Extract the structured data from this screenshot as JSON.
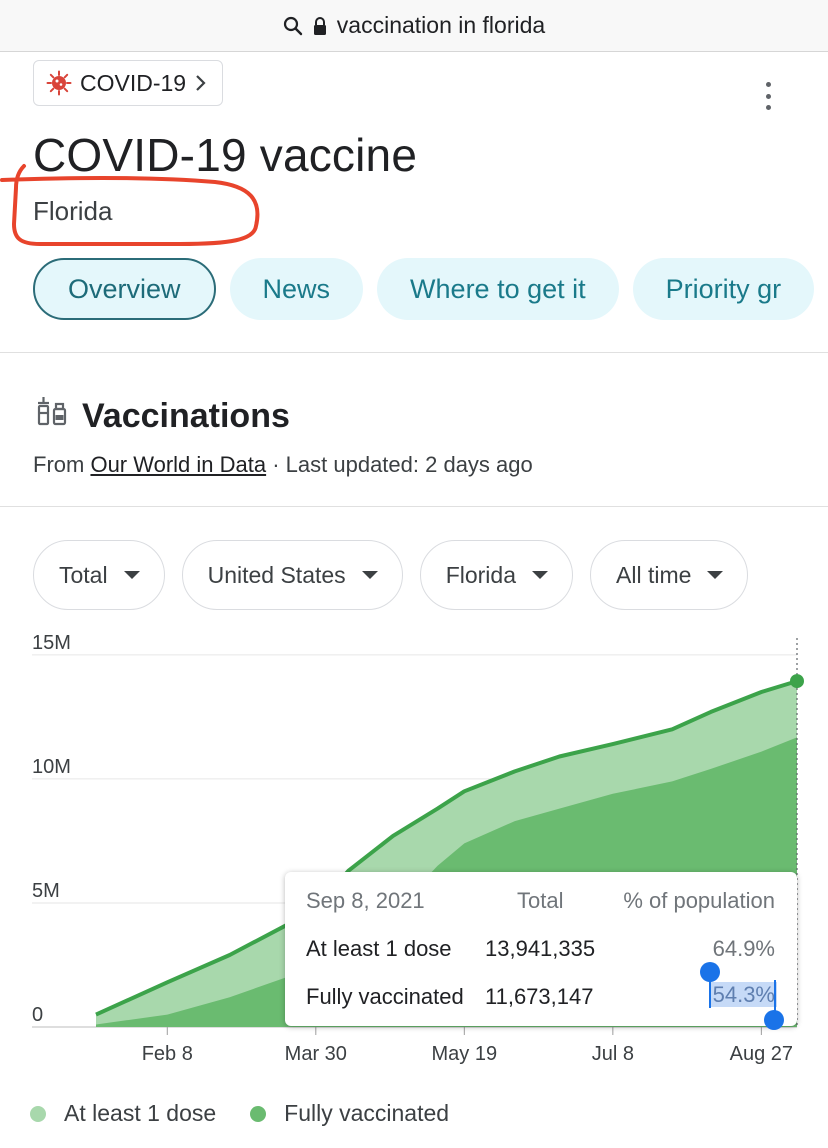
{
  "browser": {
    "address": "vaccination in florida"
  },
  "topic_chip": {
    "label": "COVID-19"
  },
  "header": {
    "title": "COVID-19 vaccine",
    "location": "Florida"
  },
  "tabs": [
    {
      "label": "Overview"
    },
    {
      "label": "News"
    },
    {
      "label": "Where to get it"
    },
    {
      "label": "Priority gr"
    }
  ],
  "section": {
    "title": "Vaccinations",
    "source_prefix": "From",
    "source_link": "Our World in Data",
    "updated": "· Last updated: 2 days ago"
  },
  "filters": [
    {
      "label": "Total"
    },
    {
      "label": "United States"
    },
    {
      "label": "Florida"
    },
    {
      "label": "All time"
    }
  ],
  "colors": {
    "accent_teal": "#1a7a8a",
    "dose1_fill": "#a8d8ac",
    "full_fill": "#6abb70",
    "line": "#3ca34a",
    "annotation": "#e8442c",
    "selection": "#1a73e8"
  },
  "chart_data": {
    "type": "area",
    "title": "",
    "xlabel": "",
    "ylabel": "",
    "ylim": [
      0,
      16000000
    ],
    "y_ticks": [
      0,
      5000000,
      10000000,
      15000000
    ],
    "y_tick_labels": [
      "0",
      "5M",
      "10M",
      "15M"
    ],
    "x_range": [
      "2021-01-15",
      "2021-09-08"
    ],
    "x_ticks": [
      "2021-02-08",
      "2021-03-30",
      "2021-05-19",
      "2021-07-08",
      "2021-08-27"
    ],
    "x_tick_labels": [
      "Feb 8",
      "Mar 30",
      "May 19",
      "Jul 8",
      "Aug 27"
    ],
    "grid": "horizontal",
    "legend": "bottom",
    "series": [
      {
        "name": "At least 1 dose",
        "points": [
          [
            "2021-01-15",
            500000
          ],
          [
            "2021-02-08",
            1800000
          ],
          [
            "2021-03-01",
            2900000
          ],
          [
            "2021-03-20",
            4100000
          ],
          [
            "2021-03-30",
            4800000
          ],
          [
            "2021-04-10",
            6300000
          ],
          [
            "2021-04-25",
            7700000
          ],
          [
            "2021-05-10",
            8800000
          ],
          [
            "2021-05-19",
            9500000
          ],
          [
            "2021-06-05",
            10300000
          ],
          [
            "2021-06-20",
            10900000
          ],
          [
            "2021-07-08",
            11400000
          ],
          [
            "2021-07-28",
            12000000
          ],
          [
            "2021-08-10",
            12700000
          ],
          [
            "2021-08-27",
            13500000
          ],
          [
            "2021-09-08",
            13941335
          ]
        ]
      },
      {
        "name": "Fully vaccinated",
        "points": [
          [
            "2021-01-15",
            100000
          ],
          [
            "2021-02-08",
            500000
          ],
          [
            "2021-03-01",
            1200000
          ],
          [
            "2021-03-20",
            2000000
          ],
          [
            "2021-03-30",
            2600000
          ],
          [
            "2021-04-10",
            3500000
          ],
          [
            "2021-04-25",
            4600000
          ],
          [
            "2021-05-10",
            6500000
          ],
          [
            "2021-05-19",
            7400000
          ],
          [
            "2021-06-05",
            8300000
          ],
          [
            "2021-06-20",
            8800000
          ],
          [
            "2021-07-08",
            9400000
          ],
          [
            "2021-07-28",
            9900000
          ],
          [
            "2021-08-10",
            10400000
          ],
          [
            "2021-08-27",
            11100000
          ],
          [
            "2021-09-08",
            11673147
          ]
        ]
      }
    ],
    "tooltip": {
      "date": "Sep 8, 2021",
      "col_total": "Total",
      "col_pct": "% of population",
      "rows": [
        {
          "label": "At least 1 dose",
          "total": "13,941,335",
          "pct": "64.9%"
        },
        {
          "label": "Fully vaccinated",
          "total": "11,673,147",
          "pct": "54.3%"
        }
      ]
    }
  }
}
